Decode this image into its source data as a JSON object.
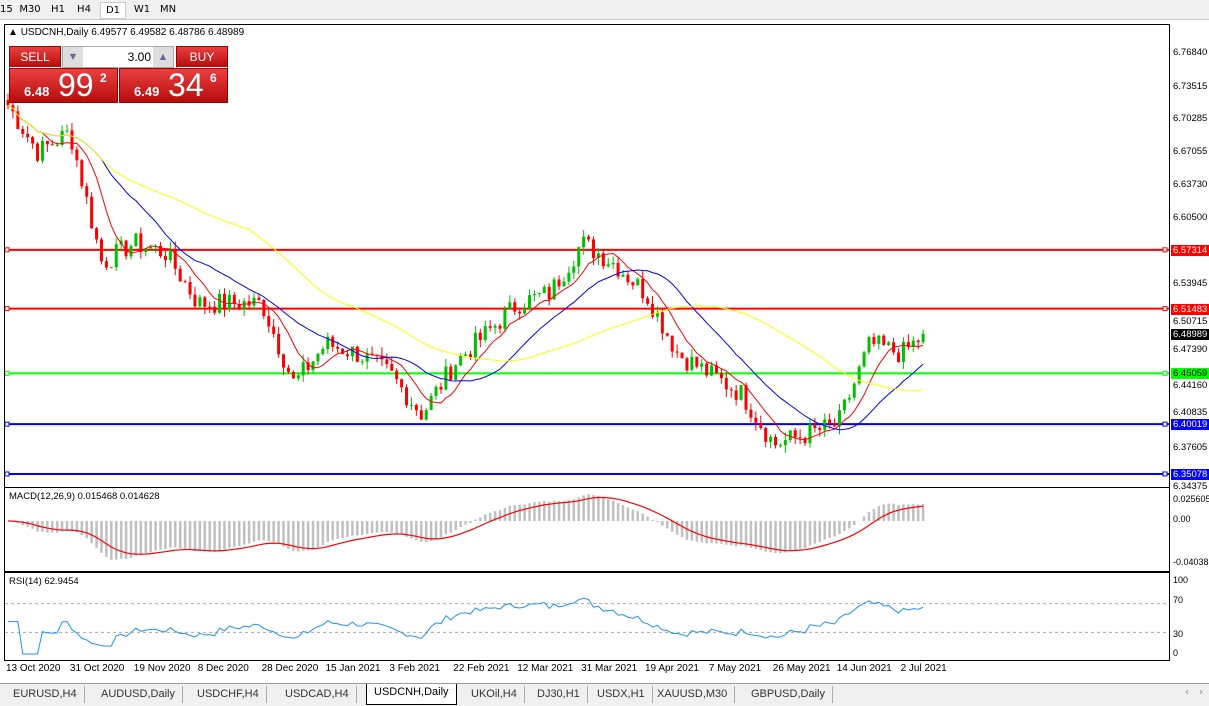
{
  "timeframes": [
    "15",
    "M30",
    "H1",
    "H4",
    "D1",
    "W1",
    "MN"
  ],
  "active_timeframe": "D1",
  "chart": {
    "symbol_line": "USDCNH,Daily  6.49577 6.49582 6.48786 6.48989"
  },
  "trade_panel": {
    "sell_label": "SELL",
    "buy_label": "BUY",
    "volume": "3.00",
    "sell": {
      "prefix": "6.48",
      "big": "99",
      "sup": "2"
    },
    "buy": {
      "prefix": "6.49",
      "big": "34",
      "sup": "6"
    }
  },
  "price_axis": [
    "6.76840",
    "6.73515",
    "6.70285",
    "6.67055",
    "6.63730",
    "6.60500",
    "6.53945",
    "6.50715",
    "6.47390",
    "6.44160",
    "6.40835",
    "6.37605",
    "6.34375"
  ],
  "current_price": "6.48989",
  "hlines": [
    {
      "price": "6.57314",
      "color": "#ff0000"
    },
    {
      "price": "6.51483",
      "color": "#ff0000"
    },
    {
      "price": "6.45059",
      "color": "#00ff00"
    },
    {
      "price": "6.40019",
      "color": "#0000ff"
    },
    {
      "price": "6.35078",
      "color": "#0000ff"
    }
  ],
  "macd": {
    "label": "MACD(12,26,9) 0.015468 0.014628",
    "axis": [
      "0.025605",
      "0.00",
      "-0.04038"
    ]
  },
  "rsi": {
    "label": "RSI(14) 62.9454",
    "axis": [
      "100",
      "70",
      "30",
      "0"
    ]
  },
  "dates": [
    "13 Oct 2020",
    "31 Oct 2020",
    "19 Nov 2020",
    "8 Dec 2020",
    "28 Dec 2020",
    "15 Jan 2021",
    "3 Feb 2021",
    "22 Feb 2021",
    "12 Mar 2021",
    "31 Mar 2021",
    "19 Apr 2021",
    "7 May 2021",
    "26 May 2021",
    "14 Jun 2021",
    "2 Jul 2021"
  ],
  "tabs": [
    "EURUSD,H4",
    "AUDUSD,Daily",
    "USDCHF,H4",
    "USDCAD,H4",
    "USDCNH,Daily",
    "UKOil,H4",
    "DJ30,H1",
    "USDX,H1",
    "XAUUSD,M30",
    "GBPUSD,Daily"
  ],
  "active_tab": "USDCNH,Daily",
  "chart_data": {
    "type": "candlestick",
    "symbol": "USDCNH",
    "timeframe": "Daily",
    "ylim": [
      6.34375,
      6.7684
    ],
    "approx_closes": [
      {
        "date": "13 Oct 2020",
        "close": 6.72
      },
      {
        "date": "22 Oct 2020",
        "close": 6.67
      },
      {
        "date": "31 Oct 2020",
        "close": 6.69
      },
      {
        "date": "10 Nov 2020",
        "close": 6.56
      },
      {
        "date": "19 Nov 2020",
        "close": 6.58
      },
      {
        "date": "30 Nov 2020",
        "close": 6.57
      },
      {
        "date": "8 Dec 2020",
        "close": 6.52
      },
      {
        "date": "17 Dec 2020",
        "close": 6.52
      },
      {
        "date": "28 Dec 2020",
        "close": 6.52
      },
      {
        "date": "6 Jan 2021",
        "close": 6.44
      },
      {
        "date": "15 Jan 2021",
        "close": 6.48
      },
      {
        "date": "26 Jan 2021",
        "close": 6.47
      },
      {
        "date": "3 Feb 2021",
        "close": 6.45
      },
      {
        "date": "12 Feb 2021",
        "close": 6.41
      },
      {
        "date": "22 Feb 2021",
        "close": 6.46
      },
      {
        "date": "3 Mar 2021",
        "close": 6.49
      },
      {
        "date": "12 Mar 2021",
        "close": 6.52
      },
      {
        "date": "23 Mar 2021",
        "close": 6.53
      },
      {
        "date": "31 Mar 2021",
        "close": 6.58
      },
      {
        "date": "9 Apr 2021",
        "close": 6.56
      },
      {
        "date": "19 Apr 2021",
        "close": 6.53
      },
      {
        "date": "28 Apr 2021",
        "close": 6.47
      },
      {
        "date": "7 May 2021",
        "close": 6.45
      },
      {
        "date": "18 May 2021",
        "close": 6.43
      },
      {
        "date": "26 May 2021",
        "close": 6.38
      },
      {
        "date": "4 Jun 2021",
        "close": 6.39
      },
      {
        "date": "14 Jun 2021",
        "close": 6.4
      },
      {
        "date": "23 Jun 2021",
        "close": 6.48
      },
      {
        "date": "2 Jul 2021",
        "close": 6.47
      },
      {
        "date": "8 Jul 2021",
        "close": 6.48989
      }
    ],
    "moving_average_colors": [
      "#ff0000",
      "#0000ff",
      "#ffff00"
    ],
    "macd_colors": {
      "histogram": "#c0c0c0",
      "signal": "#ff0000"
    },
    "rsi_color": "#1e90ff",
    "rsi_levels": [
      70,
      30
    ]
  }
}
